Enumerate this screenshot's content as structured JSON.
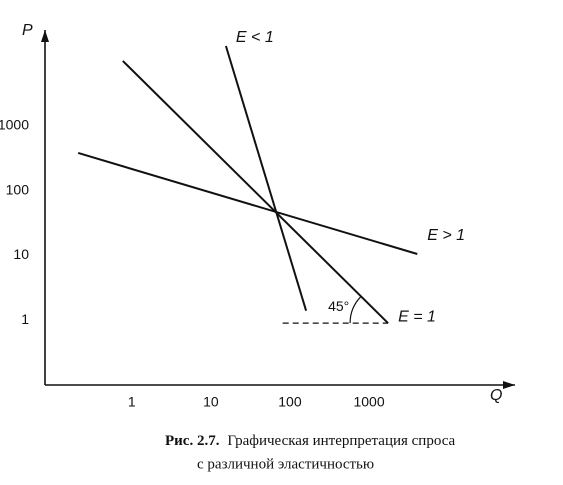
{
  "chart_data": {
    "type": "line",
    "y_label": "P",
    "x_label": "Q",
    "caption_label": "Рис. 2.7.",
    "caption": [
      "Графическая интерпретация спроса",
      "с различной эластичностью"
    ],
    "annotation": "45°",
    "log_x": true,
    "log_y": true,
    "grid": false,
    "xlim": [
      0.08,
      70000
    ],
    "ylim": [
      0.1,
      30000
    ],
    "xticks": [
      1,
      10,
      100,
      1000
    ],
    "yticks": [
      1,
      10,
      100,
      1000
    ],
    "series": [
      {
        "name": "E < 1",
        "color": "#111111",
        "x": [
          15.5,
          160
        ],
        "values": [
          17000,
          1.4
        ]
      },
      {
        "name": "E > 1",
        "color": "#111111",
        "x": [
          0.21,
          4070
        ],
        "values": [
          380,
          10.5
        ]
      },
      {
        "name": "E = 1",
        "color": "#111111",
        "x": [
          0.77,
          1740
        ],
        "values": [
          10000,
          0.9
        ]
      },
      {
        "color": "#111111",
        "dashed": true,
        "x": [
          81,
          1740
        ],
        "values": [
          0.9,
          0.9
        ]
      }
    ]
  }
}
